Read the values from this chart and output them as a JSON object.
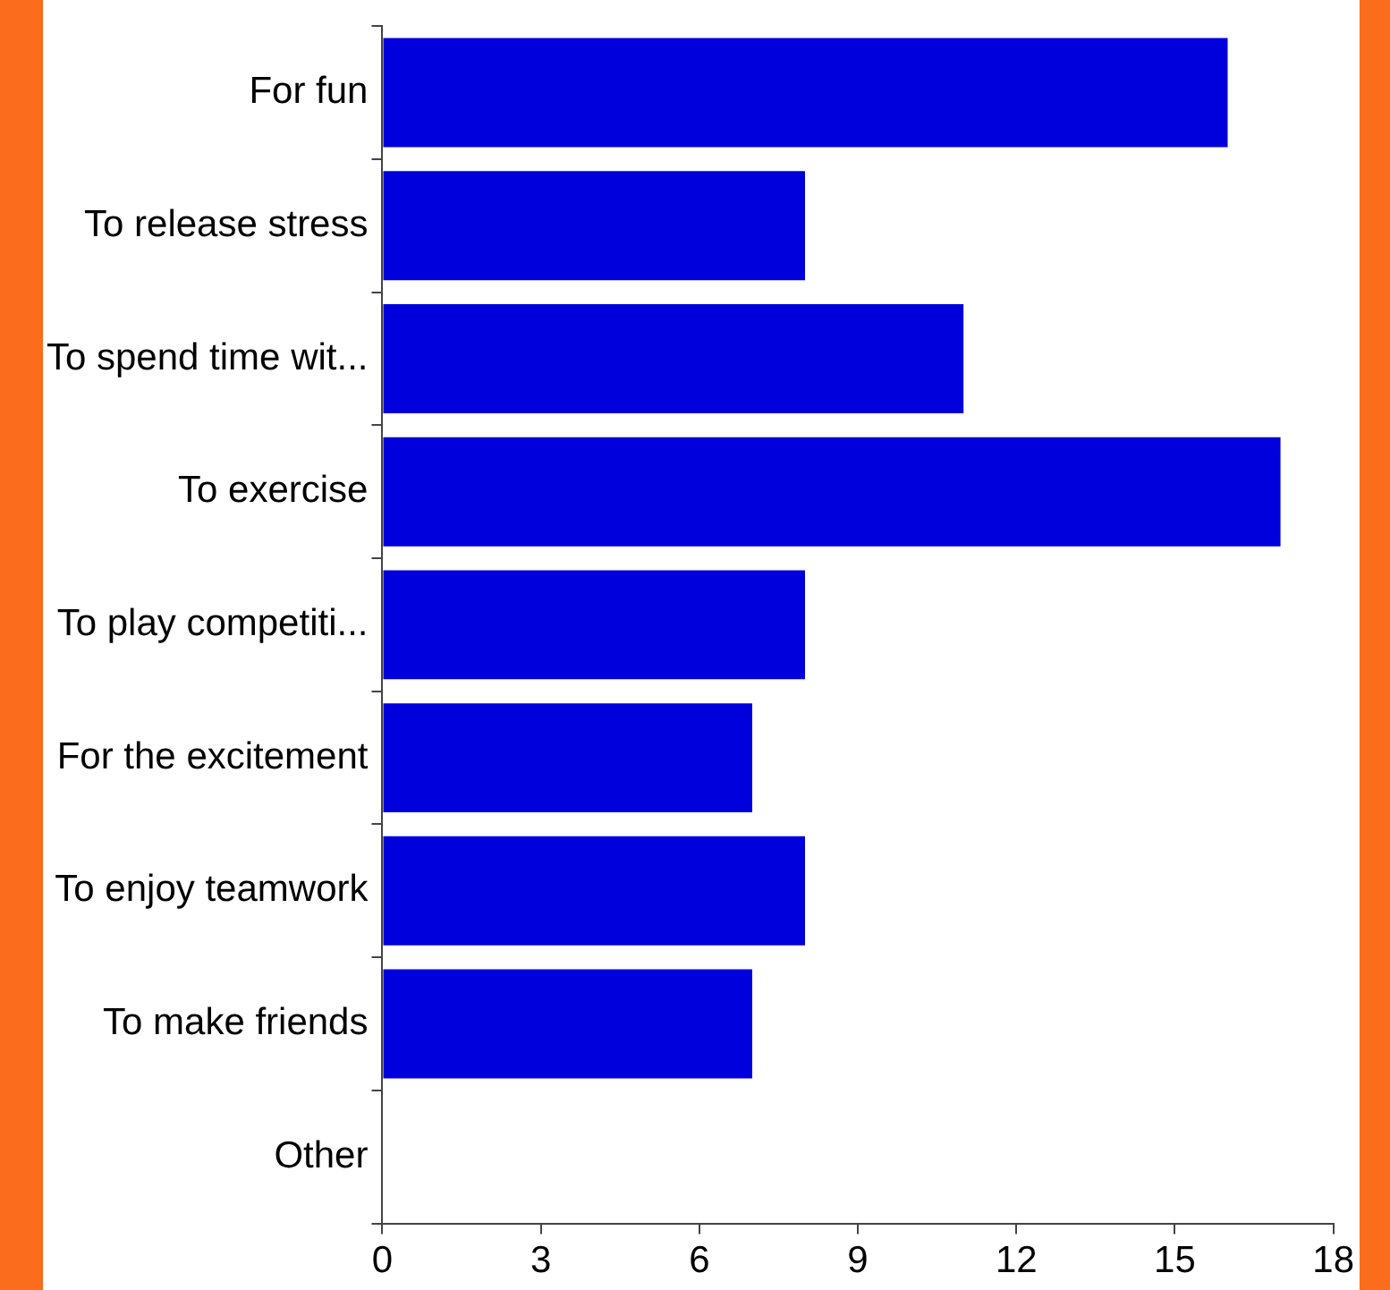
{
  "chart_data": {
    "type": "bar",
    "orientation": "horizontal",
    "categories": [
      "For fun",
      "To release stress",
      "To spend time wit...",
      "To exercise",
      "To play competiti...",
      "For the excitement",
      "To enjoy teamwork",
      "To make friends",
      "Other"
    ],
    "values": [
      16,
      8,
      11,
      17,
      8,
      7,
      8,
      7,
      0
    ],
    "color": "#0000dd",
    "xlim": [
      0,
      18
    ],
    "xticks": [
      0,
      3,
      6,
      9,
      12,
      15,
      18
    ],
    "grid": false,
    "legend": false
  }
}
